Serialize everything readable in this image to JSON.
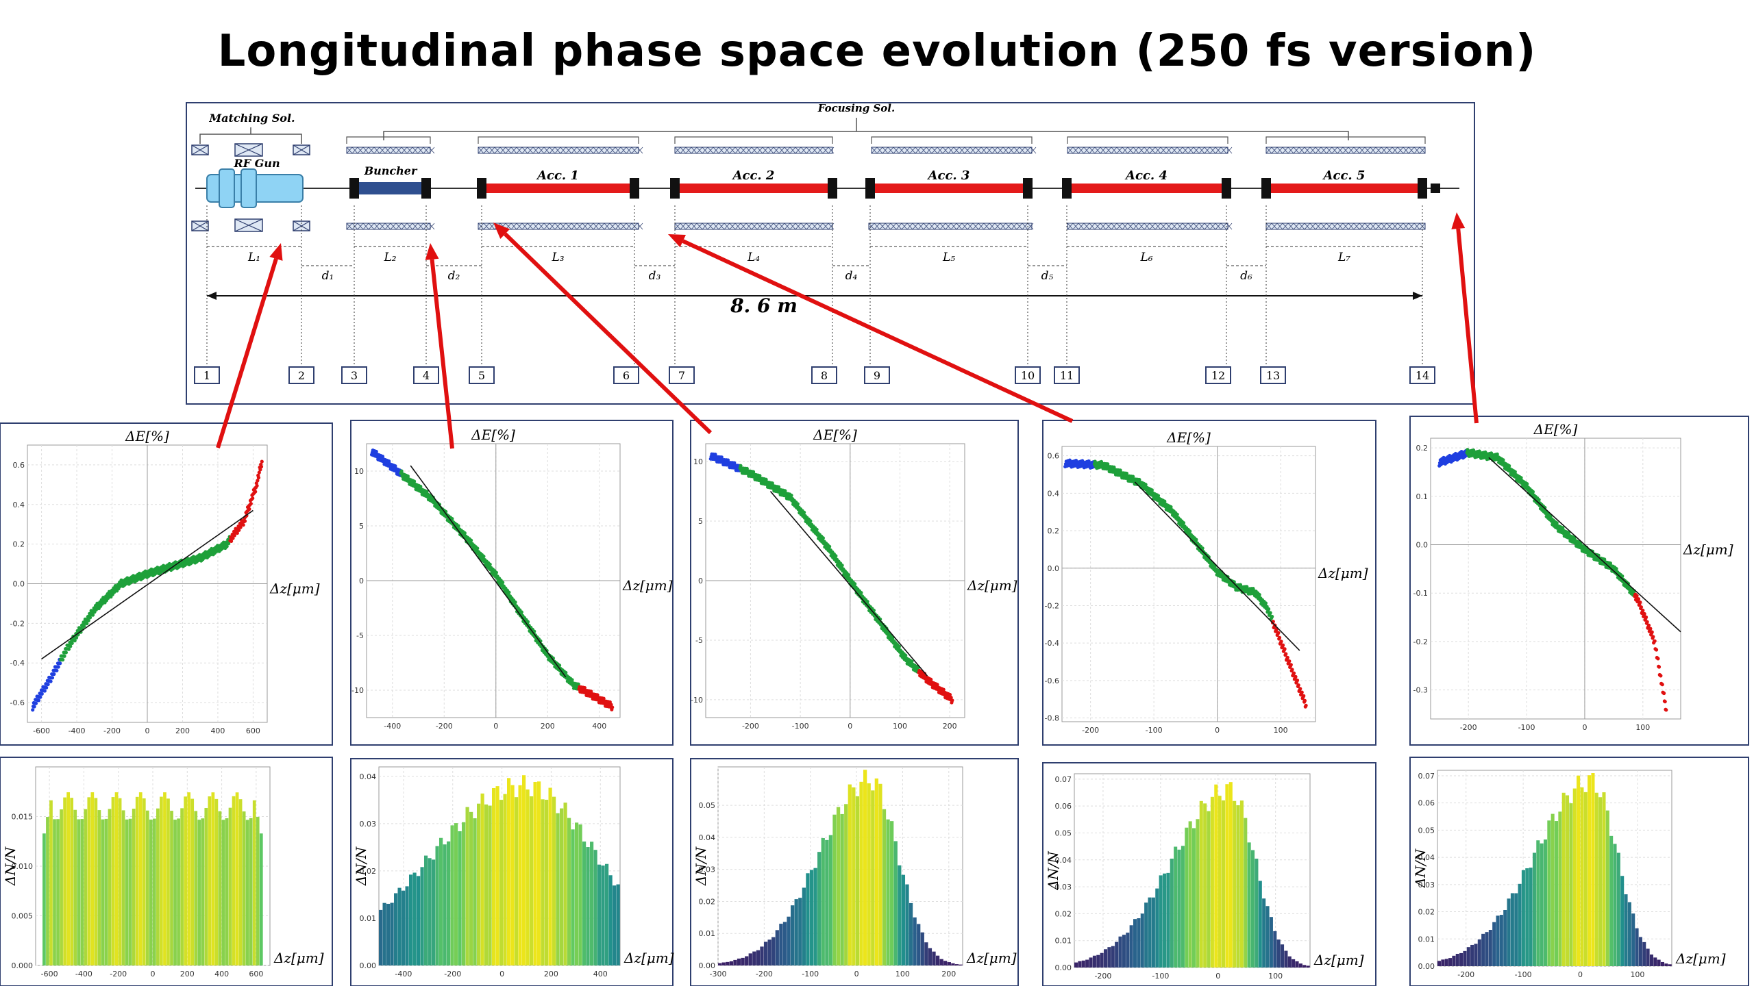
{
  "title": "Longitudinal phase space evolution (250 fs version)",
  "beamline": {
    "focusing_label": "Focusing Sol.",
    "matching_label": "Matching Sol.",
    "gun_label": "RF Gun",
    "buncher_label": "Buncher",
    "accelerators": [
      "Acc. 1",
      "Acc. 2",
      "Acc. 3",
      "Acc. 4",
      "Acc. 5"
    ],
    "lengths": [
      "L₁",
      "L₂",
      "L₃",
      "L₄",
      "L₅",
      "L₆",
      "L₇"
    ],
    "drifts": [
      "d₁",
      "d₂",
      "d₃",
      "d₄",
      "d₅",
      "d₆"
    ],
    "total_length": "8. 6 m",
    "stations": [
      "1",
      "2",
      "3",
      "4",
      "5",
      "6",
      "7",
      "8",
      "9",
      "10",
      "11",
      "12",
      "13",
      "14"
    ],
    "colors": {
      "accelerator": "#e41a1a",
      "buncher": "#2f4f8f",
      "gun": "#8fd3f4",
      "arrow": "#e01010",
      "frame": "#2f3f6f"
    }
  },
  "axis_labels": {
    "energy": "ΔE[%]",
    "position": "Δz[μm]",
    "density": "ΔN/N"
  },
  "chart_data": [
    {
      "type": "scatter",
      "title": "ΔE[%]",
      "xlabel": "Δz[μm]",
      "ylabel": "ΔE[%]",
      "xlim": [
        -680,
        680
      ],
      "ylim": [
        -0.7,
        0.7
      ],
      "xticks": [
        "-600",
        "-400",
        "-200",
        "0",
        "200",
        "400",
        "600"
      ],
      "xtick_values": [
        -600,
        -400,
        -200,
        0,
        200,
        400,
        600
      ],
      "yticks": [
        "-0.6",
        "-0.4",
        "-0.2",
        "0.0",
        "0.2",
        "0.4",
        "0.6"
      ],
      "ytick_values": [
        -0.6,
        -0.4,
        -0.2,
        0,
        0.2,
        0.4,
        0.6
      ],
      "curve": [
        [
          -650,
          -0.62
        ],
        [
          -550,
          -0.48
        ],
        [
          -450,
          -0.32
        ],
        [
          -300,
          -0.13
        ],
        [
          -150,
          0.0
        ],
        [
          0,
          0.05
        ],
        [
          150,
          0.09
        ],
        [
          300,
          0.13
        ],
        [
          450,
          0.2
        ],
        [
          550,
          0.32
        ],
        [
          620,
          0.5
        ],
        [
          650,
          0.62
        ]
      ],
      "fit": [
        [
          -600,
          -0.38
        ],
        [
          600,
          0.37
        ]
      ],
      "colors": [
        "#1f3fe0",
        "#1ea03a",
        "#e01010"
      ]
    },
    {
      "type": "scatter",
      "title": "ΔE[%]",
      "xlabel": "Δz[μm]",
      "ylabel": "ΔE[%]",
      "xlim": [
        -500,
        480
      ],
      "ylim": [
        -12.5,
        12.5
      ],
      "xticks": [
        "-400",
        "-200",
        "0",
        "200",
        "400"
      ],
      "xtick_values": [
        -400,
        -200,
        0,
        200,
        400
      ],
      "yticks": [
        "-10",
        "-5",
        "0",
        "5",
        "10"
      ],
      "ytick_values": [
        -10,
        -5,
        0,
        5,
        10
      ],
      "curve": [
        [
          -480,
          11.8
        ],
        [
          -380,
          10
        ],
        [
          -250,
          7.5
        ],
        [
          -100,
          3.5
        ],
        [
          0,
          0.5
        ],
        [
          100,
          -3.2
        ],
        [
          200,
          -6.8
        ],
        [
          300,
          -9.5
        ],
        [
          450,
          -11.5
        ]
      ],
      "fit": [
        [
          -330,
          10.5
        ],
        [
          270,
          -8.8
        ]
      ],
      "colors": [
        "#1f3fe0",
        "#1ea03a",
        "#e01010"
      ]
    },
    {
      "type": "scatter",
      "title": "ΔE[%]",
      "xlabel": "Δz[μm]",
      "ylabel": "ΔE[%]",
      "xlim": [
        -290,
        230
      ],
      "ylim": [
        -11.5,
        11.5
      ],
      "xticks": [
        "-200",
        "-100",
        "0",
        "100",
        "200"
      ],
      "xtick_values": [
        -200,
        -100,
        0,
        100,
        200
      ],
      "yticks": [
        "-10",
        "-5",
        "0",
        "5",
        "10"
      ],
      "ytick_values": [
        -10,
        -5,
        0,
        5,
        10
      ],
      "curve": [
        [
          -280,
          10.5
        ],
        [
          -200,
          9
        ],
        [
          -120,
          7
        ],
        [
          -40,
          2.5
        ],
        [
          0,
          0
        ],
        [
          60,
          -3.5
        ],
        [
          110,
          -6.5
        ],
        [
          160,
          -8.5
        ],
        [
          205,
          -10
        ]
      ],
      "fit": [
        [
          -160,
          7.5
        ],
        [
          155,
          -8
        ]
      ],
      "colors": [
        "#1f3fe0",
        "#1ea03a",
        "#e01010"
      ]
    },
    {
      "type": "scatter",
      "title": "ΔE[%]",
      "xlabel": "Δz[μm]",
      "ylabel": "ΔE[%]",
      "xlim": [
        -245,
        155
      ],
      "ylim": [
        -0.82,
        0.65
      ],
      "xticks": [
        "-200",
        "-100",
        "0",
        "100"
      ],
      "xtick_values": [
        -200,
        -100,
        0,
        100
      ],
      "yticks": [
        "-0.8",
        "-0.6",
        "-0.4",
        "-0.2",
        "0.0",
        "0.2",
        "0.4",
        "0.6"
      ],
      "ytick_values": [
        -0.8,
        -0.6,
        -0.4,
        -0.2,
        0,
        0.2,
        0.4,
        0.6
      ],
      "curve": [
        [
          -240,
          0.56
        ],
        [
          -180,
          0.55
        ],
        [
          -120,
          0.45
        ],
        [
          -70,
          0.3
        ],
        [
          -30,
          0.12
        ],
        [
          0,
          -0.02
        ],
        [
          30,
          -0.1
        ],
        [
          60,
          -0.13
        ],
        [
          80,
          -0.22
        ],
        [
          110,
          -0.48
        ],
        [
          140,
          -0.73
        ]
      ],
      "fit": [
        [
          -130,
          0.46
        ],
        [
          130,
          -0.44
        ]
      ],
      "colors": [
        "#1f3fe0",
        "#1ea03a",
        "#e01010"
      ]
    },
    {
      "type": "scatter",
      "title": "ΔE[%]",
      "xlabel": "Δz[μm]",
      "ylabel": "ΔE[%]",
      "xlim": [
        -265,
        165
      ],
      "ylim": [
        -0.36,
        0.22
      ],
      "xticks": [
        "-200",
        "-100",
        "0",
        "100"
      ],
      "xtick_values": [
        -200,
        -100,
        0,
        100
      ],
      "yticks": [
        "-0.3",
        "-0.2",
        "-0.1",
        "0.0",
        "0.1",
        "0.2"
      ],
      "ytick_values": [
        -0.3,
        -0.2,
        -0.1,
        0,
        0.1,
        0.2
      ],
      "curve": [
        [
          -250,
          0.17
        ],
        [
          -200,
          0.19
        ],
        [
          -150,
          0.18
        ],
        [
          -100,
          0.12
        ],
        [
          -50,
          0.04
        ],
        [
          0,
          -0.01
        ],
        [
          50,
          -0.05
        ],
        [
          90,
          -0.11
        ],
        [
          120,
          -0.2
        ],
        [
          140,
          -0.34
        ]
      ],
      "fit": [
        [
          -165,
          0.18
        ],
        [
          165,
          -0.18
        ]
      ],
      "colors": [
        "#1f3fe0",
        "#1ea03a",
        "#e01010"
      ]
    },
    {
      "type": "bar",
      "title": "",
      "xlabel": "Δz[μm]",
      "ylabel": "ΔN/N",
      "xlim": [
        -680,
        680
      ],
      "ylim": [
        0,
        0.02
      ],
      "xticks": [
        "-600",
        "-400",
        "-200",
        "0",
        "200",
        "400",
        "600"
      ],
      "xtick_values": [
        -600,
        -400,
        -200,
        0,
        200,
        400,
        600
      ],
      "yticks": [
        "0.000",
        "0.005",
        "0.010",
        "0.015"
      ],
      "ytick_values": [
        0,
        0.005,
        0.01,
        0.015
      ],
      "profile": {
        "kind": "flat",
        "center": 0,
        "width": 640,
        "peak": 0.0178
      }
    },
    {
      "type": "bar",
      "title": "",
      "xlabel": "Δz[μm]",
      "ylabel": "ΔN/N",
      "xlim": [
        -500,
        480
      ],
      "ylim": [
        0,
        0.042
      ],
      "xticks": [
        "-400",
        "-200",
        "0",
        "200",
        "400"
      ],
      "xtick_values": [
        -400,
        -200,
        0,
        200,
        400
      ],
      "yticks": [
        "0.00",
        "0.01",
        "0.02",
        "0.03",
        "0.04"
      ],
      "ytick_values": [
        0,
        0.01,
        0.02,
        0.03,
        0.04
      ],
      "profile": {
        "kind": "peak",
        "center": 90,
        "width_left": 380,
        "width_right": 300,
        "peak": 0.038
      }
    },
    {
      "type": "bar",
      "title": "",
      "xlabel": "Δz[μm]",
      "ylabel": "ΔN/N",
      "xlim": [
        -300,
        230
      ],
      "ylim": [
        0,
        0.062
      ],
      "xticks": [
        "-300",
        "-200",
        "-100",
        "0",
        "100",
        "200"
      ],
      "xtick_values": [
        -300,
        -200,
        -100,
        0,
        100,
        200
      ],
      "yticks": [
        "0.00",
        "0.01",
        "0.02",
        "0.03",
        "0.04",
        "0.05"
      ],
      "ytick_values": [
        0,
        0.01,
        0.02,
        0.03,
        0.04,
        0.05
      ],
      "profile": {
        "kind": "peak",
        "center": 30,
        "width_left": 110,
        "width_right": 60,
        "peak": 0.058
      }
    },
    {
      "type": "bar",
      "title": "",
      "xlabel": "Δz[μm]",
      "ylabel": "ΔN/N",
      "xlim": [
        -250,
        160
      ],
      "ylim": [
        0,
        0.072
      ],
      "xticks": [
        "-200",
        "-100",
        "0",
        "100"
      ],
      "xtick_values": [
        -200,
        -100,
        0,
        100
      ],
      "yticks": [
        "0.00",
        "0.01",
        "0.02",
        "0.03",
        "0.04",
        "0.05",
        "0.06",
        "0.07"
      ],
      "ytick_values": [
        0,
        0.01,
        0.02,
        0.03,
        0.04,
        0.05,
        0.06,
        0.07
      ],
      "profile": {
        "kind": "peak",
        "center": 20,
        "width_left": 100,
        "width_right": 45,
        "peak": 0.066
      }
    },
    {
      "type": "bar",
      "title": "",
      "xlabel": "Δz[μm]",
      "ylabel": "ΔN/N",
      "xlim": [
        -250,
        160
      ],
      "ylim": [
        0,
        0.072
      ],
      "xticks": [
        "-200",
        "-100",
        "0",
        "100"
      ],
      "xtick_values": [
        -200,
        -100,
        0,
        100
      ],
      "yticks": [
        "0.00",
        "0.01",
        "0.02",
        "0.03",
        "0.04",
        "0.05",
        "0.06",
        "0.07"
      ],
      "ytick_values": [
        0,
        0.01,
        0.02,
        0.03,
        0.04,
        0.05,
        0.06,
        0.07
      ],
      "profile": {
        "kind": "peak",
        "center": 20,
        "width_left": 100,
        "width_right": 45,
        "peak": 0.068
      }
    }
  ]
}
